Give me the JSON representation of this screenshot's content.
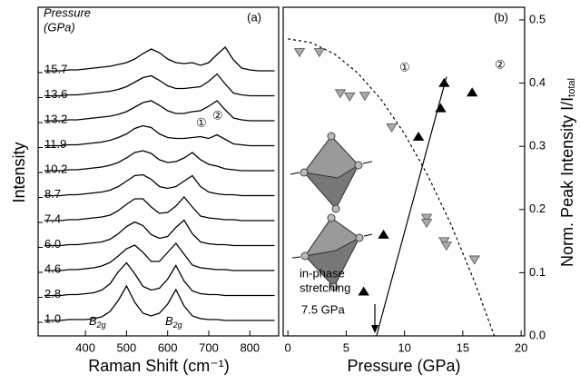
{
  "chart_data": [
    {
      "type": "spectra",
      "panel_label": "(a)",
      "x_label": "Raman Shift (cm⁻¹)",
      "y_label": "Intensity",
      "legend_title": [
        "Pressure",
        "(GPa)"
      ],
      "peak_markers": [
        "①",
        "②"
      ],
      "peak_labels": [
        {
          "text": "B",
          "sub": "2g"
        },
        {
          "text": "B",
          "sub": "2g"
        }
      ],
      "xlim": [
        285,
        870
      ],
      "xticks": [
        400,
        500,
        600,
        700,
        800
      ],
      "x": [
        300,
        320,
        340,
        360,
        380,
        400,
        420,
        440,
        460,
        480,
        500,
        520,
        540,
        560,
        580,
        600,
        620,
        640,
        660,
        680,
        700,
        720,
        740,
        760,
        780,
        800,
        820,
        840,
        860
      ],
      "series": [
        {
          "name": "1.0",
          "color": "#000000",
          "values": [
            2,
            2,
            2,
            3,
            3,
            3,
            4,
            6,
            12,
            24,
            40,
            22,
            10,
            7,
            10,
            20,
            36,
            18,
            7,
            4,
            3,
            3,
            2,
            2,
            2,
            2,
            2,
            2,
            2
          ]
        },
        {
          "name": "2.8",
          "color": "#000000",
          "values": [
            2,
            2,
            2,
            3,
            3,
            4,
            5,
            8,
            15,
            28,
            38,
            26,
            12,
            8,
            10,
            20,
            35,
            18,
            7,
            4,
            3,
            3,
            2,
            2,
            2,
            2,
            2,
            2,
            2
          ]
        },
        {
          "name": "4.6",
          "color": "#000000",
          "values": [
            2,
            2,
            2,
            3,
            3,
            4,
            5,
            7,
            11,
            18,
            26,
            30,
            22,
            12,
            12,
            22,
            32,
            20,
            8,
            5,
            4,
            3,
            3,
            2,
            2,
            2,
            2,
            2,
            2
          ]
        },
        {
          "name": "6.0",
          "color": "#000000",
          "values": [
            2,
            2,
            2,
            3,
            3,
            4,
            5,
            6,
            9,
            15,
            23,
            28,
            24,
            14,
            10,
            12,
            22,
            30,
            15,
            6,
            4,
            3,
            3,
            2,
            2,
            2,
            2,
            2,
            2
          ]
        },
        {
          "name": "7.4",
          "color": "#000000",
          "values": [
            2,
            2,
            2,
            3,
            3,
            4,
            5,
            6,
            8,
            13,
            20,
            26,
            26,
            17,
            10,
            11,
            18,
            28,
            17,
            7,
            5,
            4,
            3,
            3,
            2,
            2,
            2,
            2,
            2
          ]
        },
        {
          "name": "8.7",
          "color": "#000000",
          "values": [
            2,
            2,
            2,
            3,
            3,
            4,
            5,
            6,
            8,
            12,
            18,
            24,
            25,
            20,
            12,
            10,
            12,
            18,
            24,
            12,
            6,
            4,
            3,
            3,
            2,
            2,
            2,
            2,
            2
          ]
        },
        {
          "name": "10.2",
          "color": "#000000",
          "values": [
            2,
            2,
            2,
            3,
            3,
            4,
            5,
            6,
            8,
            11,
            16,
            22,
            24,
            21,
            14,
            11,
            12,
            16,
            22,
            14,
            9,
            7,
            4,
            3,
            2,
            2,
            2,
            2,
            2
          ]
        },
        {
          "name": "11.9",
          "color": "#000000",
          "values": [
            2,
            2,
            2,
            3,
            3,
            4,
            5,
            6,
            8,
            11,
            15,
            21,
            24,
            22,
            15,
            11,
            10,
            10,
            11,
            12,
            10,
            14,
            9,
            4,
            3,
            2,
            2,
            2,
            2
          ]
        },
        {
          "name": "13.2",
          "color": "#000000",
          "values": [
            2,
            2,
            2,
            3,
            3,
            4,
            5,
            6,
            7,
            9,
            12,
            17,
            22,
            24,
            19,
            13,
            10,
            10,
            12,
            13,
            18,
            24,
            14,
            5,
            3,
            2,
            2,
            2,
            2
          ]
        },
        {
          "name": "13.6",
          "color": "#000000",
          "values": [
            2,
            2,
            2,
            3,
            3,
            4,
            5,
            6,
            7,
            9,
            12,
            17,
            22,
            24,
            19,
            13,
            10,
            10,
            11,
            12,
            18,
            26,
            15,
            5,
            3,
            2,
            2,
            2,
            2
          ]
        },
        {
          "name": "15.7",
          "color": "#000000",
          "values": [
            2,
            2,
            2,
            3,
            3,
            4,
            5,
            6,
            7,
            9,
            11,
            15,
            21,
            26,
            22,
            15,
            11,
            10,
            11,
            8,
            11,
            20,
            28,
            14,
            5,
            3,
            2,
            2,
            2
          ]
        }
      ]
    },
    {
      "type": "scatter",
      "panel_label": "(b)",
      "x_label": "Pressure (GPa)",
      "y_label": "Norm. Peak Intensity I/I",
      "y_label_sub": "total",
      "xlim": [
        -0.4,
        20.3
      ],
      "xticks": [
        0,
        5,
        10,
        15,
        20
      ],
      "ylim": [
        0,
        0.52
      ],
      "yticks": [
        {
          "value": 0,
          "label": "0.0"
        },
        0.1,
        0.2,
        0.3,
        0.4,
        0.5
      ],
      "annotation": "7.5 GPa",
      "inset_text": [
        "in-phase",
        "stretching"
      ],
      "series": [
        {
          "name": "①",
          "color": "#aaaaaa",
          "marker": "triangle-down",
          "x": [
            1.0,
            2.7,
            4.5,
            5.3,
            6.6,
            8.9,
            11.9,
            11.9,
            13.4,
            13.6,
            16.0
          ],
          "values": [
            0.449,
            0.449,
            0.384,
            0.379,
            0.38,
            0.33,
            0.187,
            0.179,
            0.15,
            0.143,
            0.121
          ]
        },
        {
          "name": "②",
          "color": "#000000",
          "marker": "triangle-up",
          "x": [
            6.5,
            8.2,
            11.2,
            13.1,
            13.4,
            15.8
          ],
          "values": [
            0.07,
            0.16,
            0.315,
            0.36,
            0.4,
            0.385
          ]
        }
      ],
      "fits": [
        {
          "style": "dashed",
          "x": [
            0,
            2,
            4,
            6,
            8,
            10,
            12,
            14,
            16,
            17.7
          ],
          "values": [
            0.47,
            0.464,
            0.446,
            0.416,
            0.374,
            0.32,
            0.254,
            0.176,
            0.086,
            0
          ]
        },
        {
          "style": "solid",
          "x": [
            7.6,
            13.6
          ],
          "values": [
            0,
            0.41
          ]
        }
      ]
    }
  ]
}
